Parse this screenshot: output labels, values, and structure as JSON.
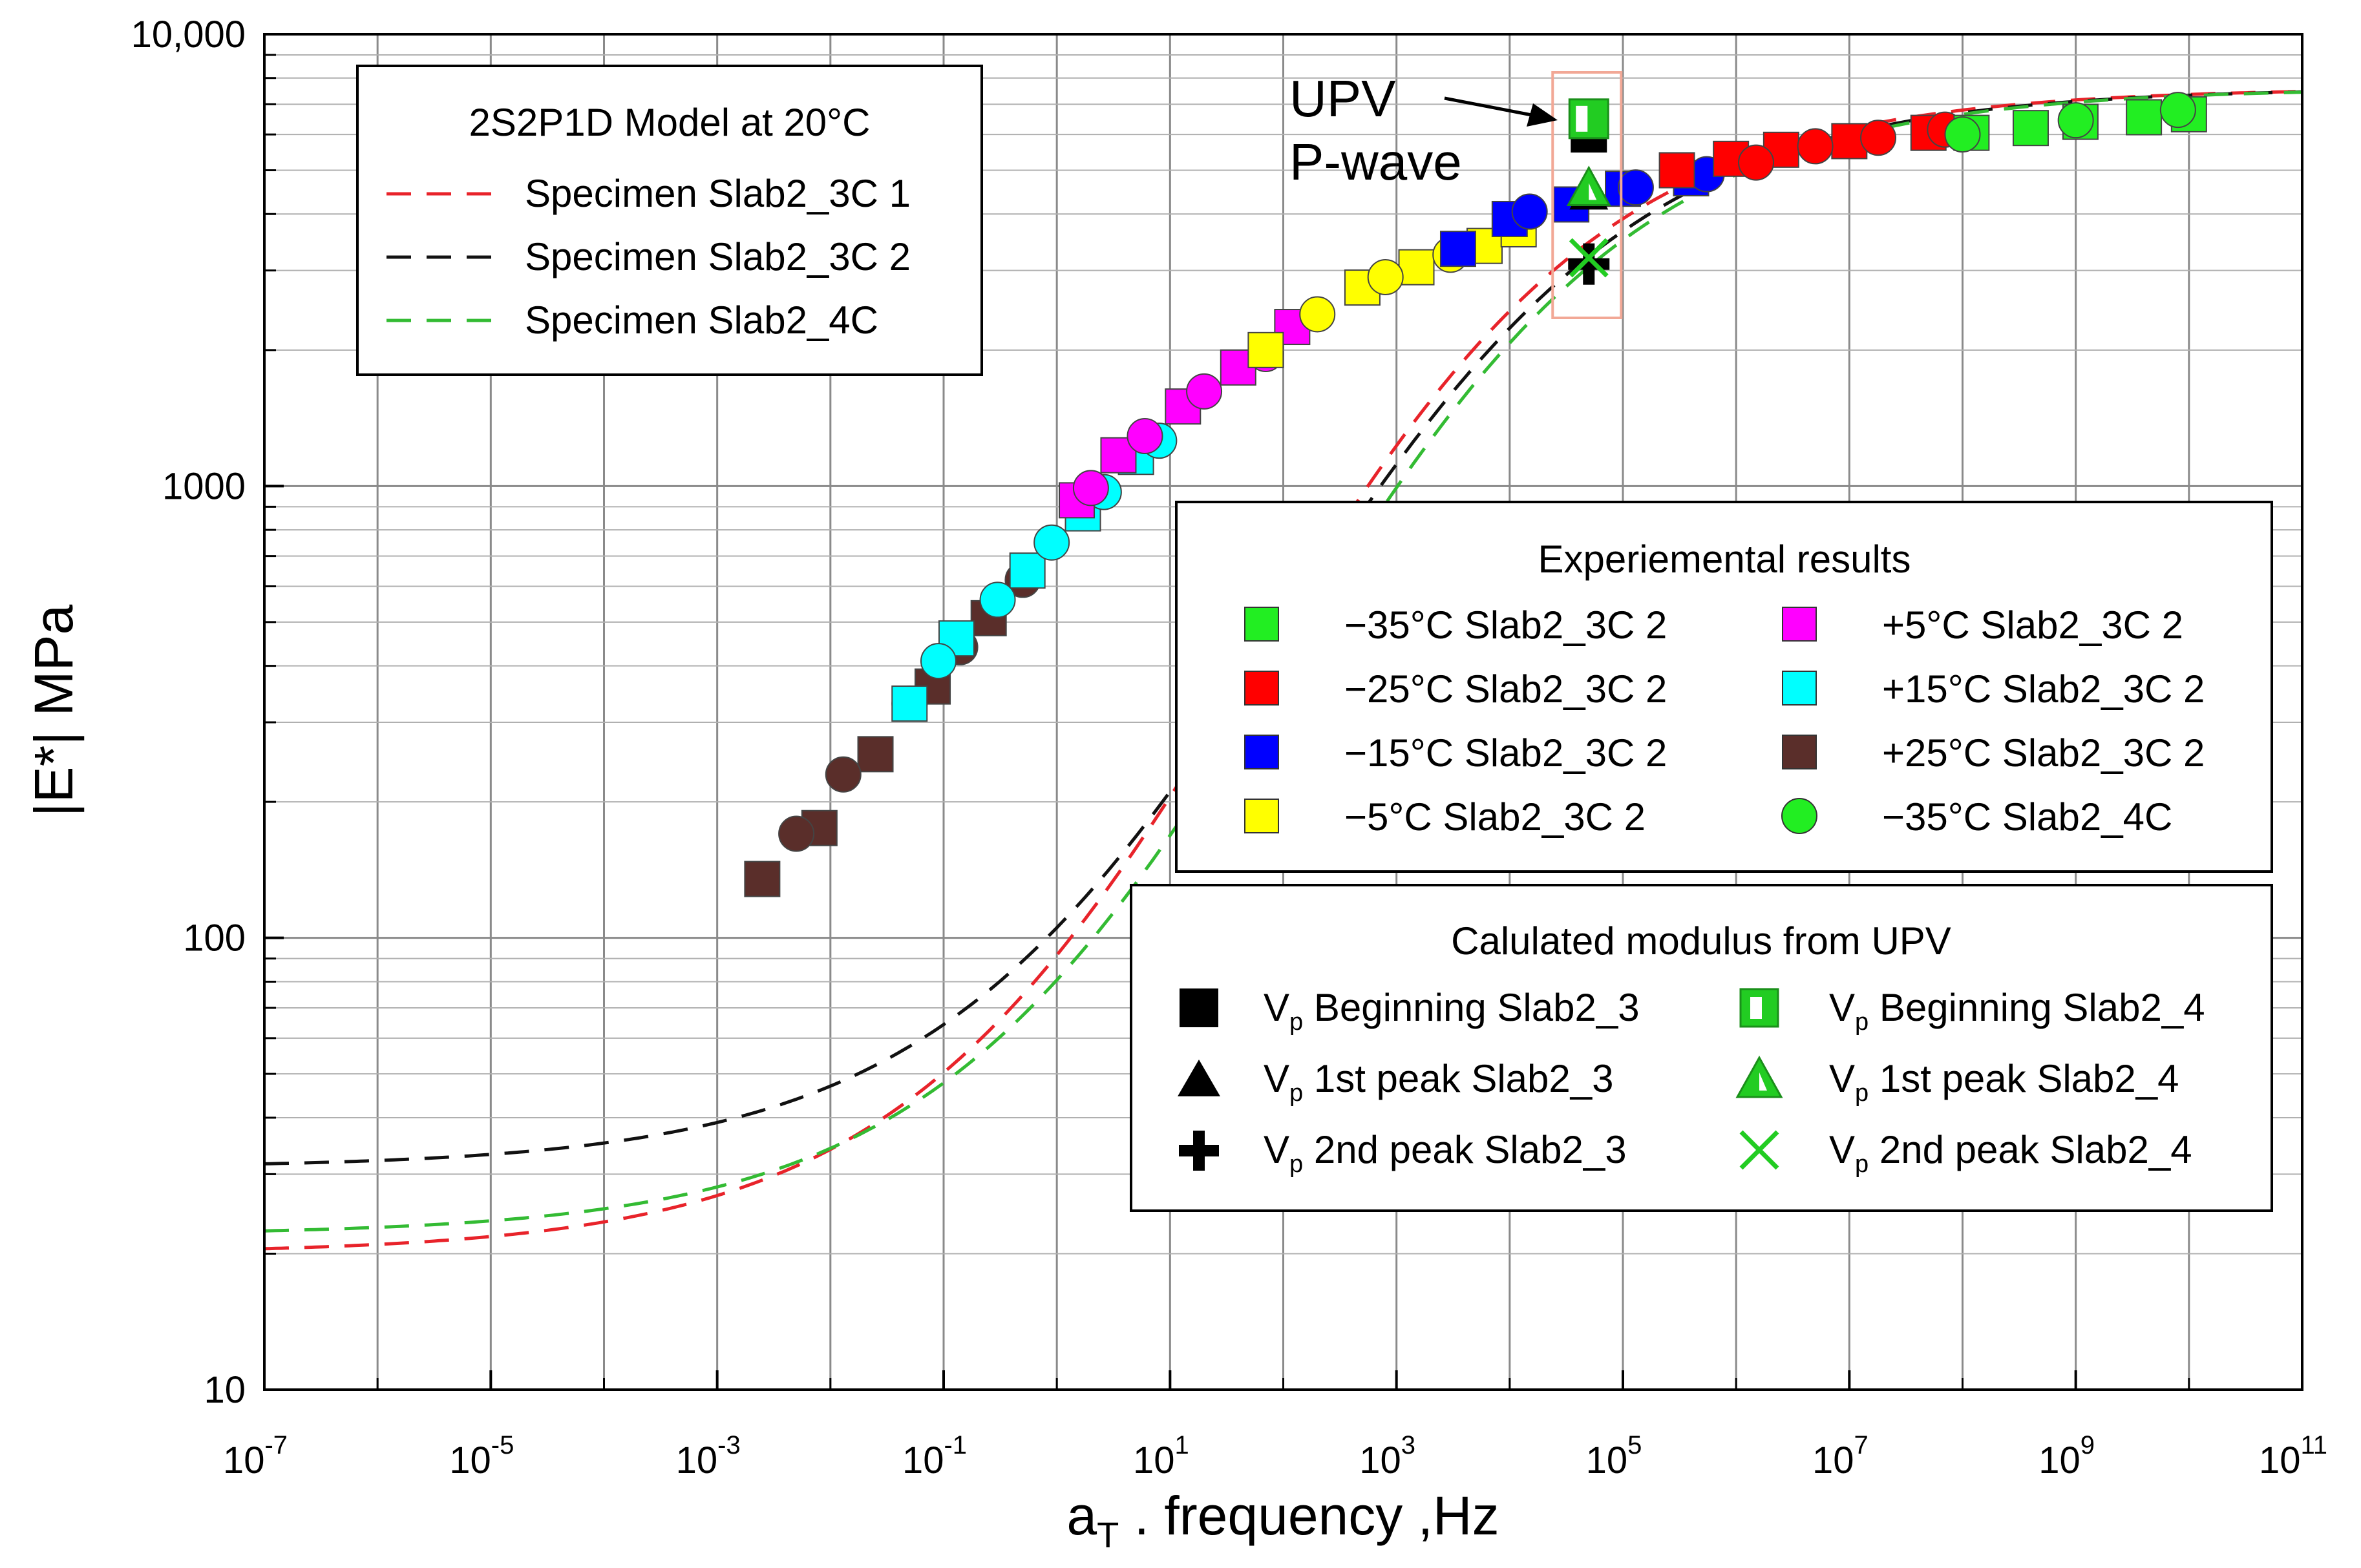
{
  "chart_data": {
    "type": "scatter",
    "title": "",
    "xlabel_main": "a",
    "xlabel_sub": "T",
    "xlabel_rest": " . frequency ,Hz",
    "ylabel": "|E*| MPa",
    "xscale": "log",
    "yscale": "log",
    "xlim_exp": [
      -7,
      11
    ],
    "ylim": [
      10,
      10000
    ],
    "grid": true,
    "x_ticks": [
      {
        "base": "10",
        "exp": "-7",
        "e": -7
      },
      {
        "base": "10",
        "exp": "-5",
        "e": -5
      },
      {
        "base": "10",
        "exp": "-3",
        "e": -3
      },
      {
        "base": "10",
        "exp": "-1",
        "e": -1
      },
      {
        "base": "10",
        "exp": "1",
        "e": 1
      },
      {
        "base": "10",
        "exp": "3",
        "e": 3
      },
      {
        "base": "10",
        "exp": "5",
        "e": 5
      },
      {
        "base": "10",
        "exp": "7",
        "e": 7
      },
      {
        "base": "10",
        "exp": "9",
        "e": 9
      },
      {
        "base": "10",
        "exp": "11",
        "e": 11
      }
    ],
    "y_ticks": [
      {
        "label": "10",
        "v": 10
      },
      {
        "label": "100",
        "v": 100
      },
      {
        "label": "1000",
        "v": 1000
      },
      {
        "label": "10,000",
        "v": 10000
      }
    ],
    "model_legend": {
      "title": "2S2P1D Model at 20°C",
      "entries": [
        {
          "label": "Specimen Slab2_3C 1",
          "color": "#e8232a"
        },
        {
          "label": "Specimen Slab2_3C 2",
          "color": "#111111"
        },
        {
          "label": "Specimen Slab2_4C",
          "color": "#33bb33"
        }
      ]
    },
    "exp_legend": {
      "title": "Experiemental results",
      "entries": [
        {
          "label": "−35°C Slab2_3C 2",
          "color": "#22ee22",
          "shape": "square"
        },
        {
          "label": "−25°C Slab2_3C 2",
          "color": "#ff0000",
          "shape": "square"
        },
        {
          "label": "−15°C Slab2_3C 2",
          "color": "#0000ff",
          "shape": "square"
        },
        {
          "label": "−5°C Slab2_3C 2",
          "color": "#ffff00",
          "shape": "square"
        },
        {
          "label": "+5°C Slab2_3C 2",
          "color": "#ff00ff",
          "shape": "square"
        },
        {
          "label": "+15°C Slab2_3C 2",
          "color": "#00ffff",
          "shape": "square"
        },
        {
          "label": "+25°C Slab2_3C 2",
          "color": "#5a2e2a",
          "shape": "square"
        },
        {
          "label": "−35°C Slab2_4C",
          "color": "#22ee22",
          "shape": "circle"
        }
      ]
    },
    "upv_legend": {
      "title": "Calulated modulus from UPV",
      "entries": [
        {
          "pre": "V",
          "sub": "p",
          "rest": " Beginning Slab2_3",
          "shape": "square-black"
        },
        {
          "pre": "V",
          "sub": "p",
          "rest": " 1st peak Slab2_3",
          "shape": "triangle-black"
        },
        {
          "pre": "V",
          "sub": "p",
          "rest": " 2nd peak Slab2_3",
          "shape": "plus-black"
        },
        {
          "pre": "V",
          "sub": "p",
          "rest": " Beginning Slab2_4",
          "shape": "square-green-half"
        },
        {
          "pre": "V",
          "sub": "p",
          "rest": " 1st peak Slab2_4",
          "shape": "triangle-green"
        },
        {
          "pre": "V",
          "sub": "p",
          "rest": " 2nd peak Slab2_4",
          "shape": "x-green"
        }
      ]
    },
    "annotation": {
      "line1": "UPV",
      "line2": "P-wave"
    },
    "model_curves": [
      {
        "name": "Specimen Slab2_3C 1",
        "color": "#e8232a",
        "einf": 20,
        "e0": 7600,
        "dlog": 1.18,
        "logf_c": 1.7,
        "slope": 0.37
      },
      {
        "name": "Specimen Slab2_3C 2",
        "color": "#111111",
        "einf": 31,
        "e0": 7600,
        "dlog": 1.15,
        "logf_c": 2.0,
        "slope": 0.36
      },
      {
        "name": "Specimen Slab2_4C",
        "color": "#33bb33",
        "einf": 22,
        "e0": 7600,
        "dlog": 1.15,
        "logf_c": 2.0,
        "slope": 0.36
      }
    ],
    "series": [
      {
        "name": "+25°C Slab2_3C 2",
        "color": "#5a2e2a",
        "marker": "square",
        "x": [
          0.0025,
          0.008,
          0.025,
          0.08,
          0.25
        ],
        "y": [
          135,
          175,
          255,
          360,
          510
        ]
      },
      {
        "name": "+25°C Slab2_3C 2 circles",
        "color": "#5a2e2a",
        "marker": "circle",
        "x": [
          0.005,
          0.013,
          0.05,
          0.14,
          0.5
        ],
        "y": [
          170,
          230,
          330,
          440,
          620
        ]
      },
      {
        "name": "+15°C Slab2_3C 2",
        "color": "#00ffff",
        "marker": "square",
        "x": [
          0.05,
          0.13,
          0.55,
          1.7,
          5
        ],
        "y": [
          330,
          460,
          650,
          870,
          1160
        ]
      },
      {
        "name": "+15°C Slab2_3C 2 circles",
        "color": "#00ffff",
        "marker": "circle",
        "x": [
          0.09,
          0.3,
          0.9,
          2.6,
          8
        ],
        "y": [
          410,
          560,
          750,
          970,
          1260
        ]
      },
      {
        "name": "+5°C Slab2_3C 2",
        "color": "#ff00ff",
        "marker": "square",
        "x": [
          1.5,
          3.5,
          13,
          40,
          120
        ],
        "y": [
          930,
          1170,
          1500,
          1830,
          2250
        ]
      },
      {
        "name": "+5°C Slab2_3C 2 circles",
        "color": "#ff00ff",
        "marker": "circle",
        "x": [
          2,
          6,
          20,
          70
        ],
        "y": [
          990,
          1290,
          1620,
          1960
        ]
      },
      {
        "name": "−5°C Slab2_3C 2",
        "color": "#ffff00",
        "marker": "square",
        "x": [
          70,
          500,
          1500,
          6000,
          12000
        ],
        "y": [
          2000,
          2750,
          3050,
          3400,
          3700
        ]
      },
      {
        "name": "−5°C Slab2_3C 2 circles",
        "color": "#ffff00",
        "marker": "circle",
        "x": [
          200,
          800,
          3000
        ],
        "y": [
          2400,
          2900,
          3250
        ]
      },
      {
        "name": "−15°C Slab2_3C 2",
        "color": "#0000ff",
        "marker": "square",
        "x": [
          3500,
          10000,
          35000,
          100000,
          400000
        ],
        "y": [
          3350,
          3900,
          4200,
          4550,
          4800
        ]
      },
      {
        "name": "−15°C Slab2_3C 2 circles",
        "color": "#0000ff",
        "marker": "circle",
        "x": [
          15000,
          130000,
          550000
        ],
        "y": [
          4050,
          4580,
          4900
        ]
      },
      {
        "name": "−25°C Slab2_3C 2",
        "color": "#ff0000",
        "marker": "square",
        "x": [
          300000,
          900000,
          2500000,
          10000000,
          50000000
        ],
        "y": [
          5000,
          5300,
          5550,
          5800,
          6050
        ]
      },
      {
        "name": "−25°C Slab2_3C 2 circles",
        "color": "#ff0000",
        "marker": "circle",
        "x": [
          1500000,
          5000000,
          18000000,
          70000000
        ],
        "y": [
          5200,
          5650,
          5900,
          6150
        ]
      },
      {
        "name": "−35°C Slab2_3C 2",
        "color": "#22ee22",
        "marker": "square",
        "x": [
          120000000,
          400000000,
          1100000000,
          4000000000,
          10000000000
        ],
        "y": [
          6050,
          6200,
          6400,
          6550,
          6650
        ]
      },
      {
        "name": "−35°C Slab2_4C",
        "color": "#22ee22",
        "marker": "circle",
        "x": [
          100000000,
          1000000000,
          8000000000
        ],
        "y": [
          6000,
          6450,
          6800
        ]
      }
    ],
    "upv_points": [
      {
        "name": "Vp Beginning Slab2_3",
        "shape": "square-black",
        "x": 50000,
        "y": 6000
      },
      {
        "name": "Vp Beginning Slab2_4",
        "shape": "square-green-half",
        "x": 50000,
        "y": 6500
      },
      {
        "name": "Vp 1st peak Slab2_3",
        "shape": "triangle-black",
        "x": 50000,
        "y": 4400
      },
      {
        "name": "Vp 1st peak Slab2_4",
        "shape": "triangle-green",
        "x": 50000,
        "y": 4500
      },
      {
        "name": "Vp 2nd peak Slab2_3",
        "shape": "plus-black",
        "x": 50000,
        "y": 3100
      },
      {
        "name": "Vp 2nd peak Slab2_4",
        "shape": "x-green",
        "x": 50000,
        "y": 3200
      }
    ]
  }
}
